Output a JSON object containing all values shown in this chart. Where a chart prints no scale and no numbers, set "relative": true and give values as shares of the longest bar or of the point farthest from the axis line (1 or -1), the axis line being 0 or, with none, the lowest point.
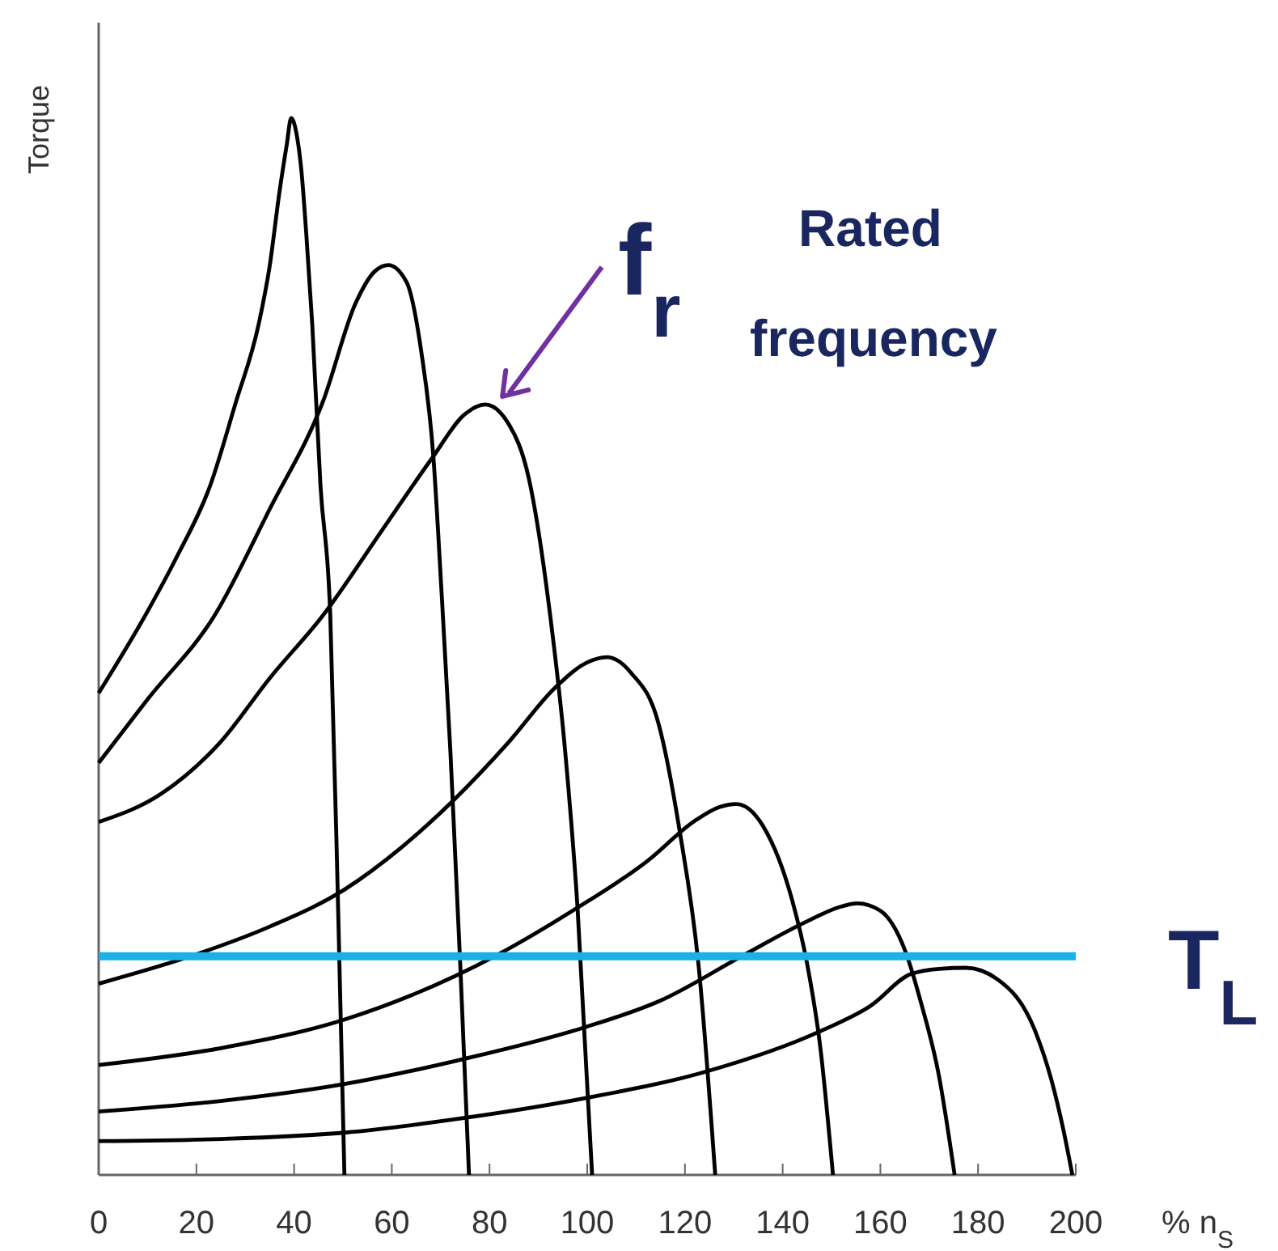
{
  "chart_data": {
    "type": "line",
    "relative": true,
    "xlabel": "% n$_{S}$",
    "ylabel": "Torque",
    "xlim": [
      0,
      200
    ],
    "xticks": [
      0,
      20,
      40,
      60,
      80,
      100,
      120,
      140,
      160,
      180,
      200
    ],
    "grid": false,
    "marker": "none",
    "line_style": "solid",
    "series": [
      {
        "color": "#000000",
        "x": [
          0,
          9.6,
          16,
          22.8,
          28,
          32.8,
          35,
          37,
          38.5,
          39.4,
          40.5,
          41.5,
          42.5,
          43.7,
          45.4,
          47.4,
          49,
          50.3
        ],
        "values": [
          0.456,
          0.53,
          0.585,
          0.652,
          0.73,
          0.806,
          0.86,
          0.93,
          0.975,
          1.0,
          0.985,
          0.95,
          0.89,
          0.806,
          0.652,
          0.53,
          0.254,
          0
        ]
      },
      {
        "color": "#000000",
        "x": [
          0,
          10,
          23.8,
          35,
          46,
          52.6,
          56.5,
          59.3,
          63,
          66,
          68.5,
          70.2,
          72,
          74,
          75.8
        ],
        "values": [
          0.39,
          0.45,
          0.53,
          0.63,
          0.733,
          0.825,
          0.855,
          0.861,
          0.845,
          0.78,
          0.68,
          0.55,
          0.4,
          0.2,
          0
        ]
      },
      {
        "color": "#000000",
        "x": [
          0,
          12.9,
          25,
          35,
          46,
          58,
          68.2,
          75,
          79.1,
          84,
          88,
          92.4,
          95.5,
          98,
          101
        ],
        "values": [
          0.334,
          0.361,
          0.41,
          0.47,
          0.53,
          0.61,
          0.678,
          0.72,
          0.729,
          0.71,
          0.66,
          0.53,
          0.4,
          0.254,
          0
        ]
      },
      {
        "color": "#000000",
        "x": [
          0,
          19.5,
          35,
          50.3,
          62,
          72.5,
          84,
          93.4,
          100,
          104,
          109,
          114.6,
          118.9,
          122.8,
          126.2
        ],
        "values": [
          0.181,
          0.208,
          0.235,
          0.27,
          0.31,
          0.354,
          0.41,
          0.461,
          0.485,
          0.49,
          0.475,
          0.427,
          0.326,
          0.198,
          0
        ]
      },
      {
        "color": "#000000",
        "x": [
          0,
          25,
          50.3,
          81.5,
          97,
          112.3,
          122,
          127,
          130.5,
          136,
          142,
          145,
          147.7,
          150.3
        ],
        "values": [
          0.104,
          0.12,
          0.147,
          0.208,
          0.25,
          0.297,
          0.335,
          0.348,
          0.351,
          0.33,
          0.259,
          0.2,
          0.121,
          0
        ]
      },
      {
        "color": "#000000",
        "x": [
          0,
          25,
          50.3,
          75,
          99,
          115,
          132,
          145,
          152,
          155.3,
          160,
          165,
          168.5,
          171.9,
          175.2
        ],
        "values": [
          0.06,
          0.07,
          0.086,
          0.11,
          0.139,
          0.165,
          0.208,
          0.24,
          0.254,
          0.257,
          0.25,
          0.213,
          0.16,
          0.096,
          0
        ]
      },
      {
        "color": "#000000",
        "x": [
          0,
          25,
          50.3,
          75,
          100,
          124.5,
          147.7,
          158,
          166.2,
          172,
          177.5,
          184,
          191.7,
          195,
          197.4,
          199.3
        ],
        "values": [
          0.032,
          0.034,
          0.04,
          0.054,
          0.073,
          0.098,
          0.136,
          0.16,
          0.19,
          0.195,
          0.196,
          0.185,
          0.136,
          0.09,
          0.044,
          0
        ]
      }
    ],
    "ref_lines": [
      {
        "axis": "y",
        "value": 0.207,
        "label": "T$_{L}$",
        "color": "#1ab0e8"
      }
    ],
    "annotations": [
      {
        "text": "f$_{r}$",
        "x": 80,
        "y": 0.729
      },
      "Rated frequency"
    ]
  }
}
